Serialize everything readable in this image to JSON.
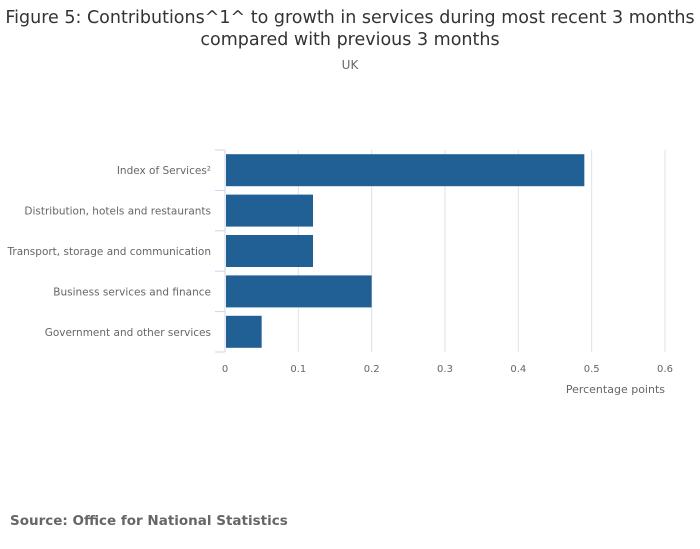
{
  "chart_data": {
    "type": "bar",
    "orientation": "horizontal",
    "title": "Figure 5: Contributions^1^ to growth in services during most recent 3 months compared with previous 3 months",
    "subtitle": "UK",
    "categories": [
      "Index of Services²",
      "Distribution, hotels and restaurants",
      "Transport, storage and communication",
      "Business services and finance",
      "Government and other services"
    ],
    "values": [
      0.49,
      0.12,
      0.12,
      0.2,
      0.05
    ],
    "xlabel": "Percentage points",
    "ylabel": "",
    "xlim": [
      0,
      0.6
    ],
    "xticks": [
      "0",
      "0.1",
      "0.2",
      "0.3",
      "0.4",
      "0.5",
      "0.6"
    ],
    "grid": true,
    "bar_color": "#206095"
  },
  "source": "Source: Office for National Statistics"
}
